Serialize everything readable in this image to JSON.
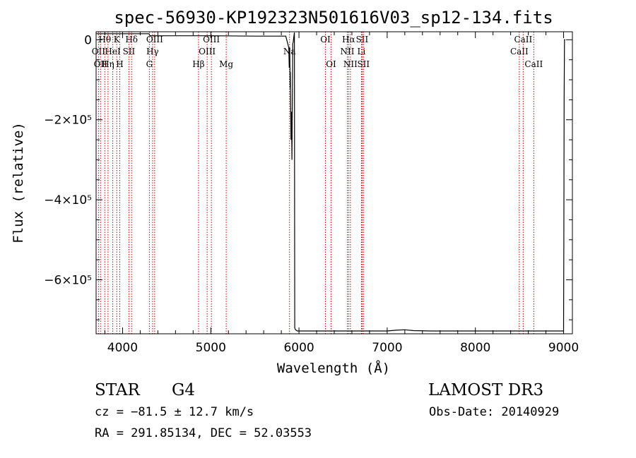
{
  "chart_data": {
    "type": "line",
    "title": "spec-56930-KP192323N501616V03_sp12-134.fits",
    "xlabel": "Wavelength (Å)",
    "ylabel": "Flux (relative)",
    "xlim": [
      3700,
      9100
    ],
    "ylim": [
      -735000,
      20000
    ],
    "x_ticks": [
      4000,
      5000,
      6000,
      7000,
      8000,
      9000
    ],
    "y_ticks": [
      {
        "value": 0,
        "label": "0"
      },
      {
        "value": -200000,
        "label": "−2×10⁵"
      },
      {
        "value": -400000,
        "label": "−4×10⁵"
      },
      {
        "value": -600000,
        "label": "−6×10⁵"
      }
    ],
    "series": [
      {
        "name": "flux",
        "x": [
          3705,
          3800,
          4000,
          4300,
          4310,
          4500,
          5000,
          5500,
          5850,
          5885,
          5890,
          5895,
          5900,
          5902,
          5905,
          5910,
          5915,
          5920,
          5925,
          5930,
          5935,
          5940,
          5948,
          5952,
          5960,
          5980,
          6000,
          6500,
          7000,
          7100,
          7200,
          7300,
          7500,
          8000,
          8500,
          9000,
          9003,
          9006,
          9010,
          9020
        ],
        "y": [
          15000,
          15000,
          15000,
          15000,
          10000,
          10000,
          10000,
          9000,
          9000,
          -20000,
          -70000,
          -20000,
          -120000,
          -80000,
          -150000,
          -250000,
          -180000,
          -300000,
          -150000,
          -10000,
          -5000,
          5000,
          18000,
          -720000,
          -725000,
          -728000,
          -728000,
          -728000,
          -728000,
          -726000,
          -725000,
          -727000,
          -728000,
          -728000,
          -728000,
          -728000,
          -500000,
          -150000,
          0,
          0
        ]
      }
    ],
    "spectral_lines": [
      {
        "wavelength": 3727,
        "label": "OII",
        "row": 1
      },
      {
        "wavelength": 3750,
        "label": "OII",
        "row": 2
      },
      {
        "wavelength": 3798,
        "label": "Hθ",
        "row": 0
      },
      {
        "wavelength": 3835,
        "label": "Hη",
        "row": 2
      },
      {
        "wavelength": 3889,
        "label": "HeI",
        "row": 1
      },
      {
        "wavelength": 3934,
        "label": "K",
        "row": 0
      },
      {
        "wavelength": 3968,
        "label": "H",
        "row": 2
      },
      {
        "wavelength": 4072,
        "label": "SII",
        "row": 1
      },
      {
        "wavelength": 4102,
        "label": "Hδ",
        "row": 0
      },
      {
        "wavelength": 4304,
        "label": "G",
        "row": 2
      },
      {
        "wavelength": 4340,
        "label": "Hγ",
        "row": 1
      },
      {
        "wavelength": 4364,
        "label": "OIII",
        "row": 0
      },
      {
        "wavelength": 4861,
        "label": "Hβ",
        "row": 2
      },
      {
        "wavelength": 4959,
        "label": "OIII",
        "row": 1
      },
      {
        "wavelength": 5007,
        "label": "OIII",
        "row": 0
      },
      {
        "wavelength": 5175,
        "label": "Mg",
        "row": 2
      },
      {
        "wavelength": 5893,
        "label": "Na",
        "row": 1
      },
      {
        "wavelength": 6300,
        "label": "OI",
        "row": 0
      },
      {
        "wavelength": 6364,
        "label": "OI",
        "row": 2
      },
      {
        "wavelength": 6548,
        "label": "NII",
        "row": 1
      },
      {
        "wavelength": 6563,
        "label": "Hα",
        "row": 0
      },
      {
        "wavelength": 6583,
        "label": "NII",
        "row": 2
      },
      {
        "wavelength": 6708,
        "label": "Li",
        "row": 1
      },
      {
        "wavelength": 6716,
        "label": "SII",
        "row": 0
      },
      {
        "wavelength": 6731,
        "label": "SII",
        "row": 2
      },
      {
        "wavelength": 8498,
        "label": "CaII",
        "row": 1
      },
      {
        "wavelength": 8542,
        "label": "CaII",
        "row": 0
      },
      {
        "wavelength": 8662,
        "label": "CaII",
        "row": 2
      }
    ]
  },
  "info": {
    "object_class": "STAR",
    "subclass": "G4",
    "survey": "LAMOST DR3",
    "redshift": "cz = −81.5 ± 12.7 km/s",
    "obs_date": "Obs-Date: 20140929",
    "coords": "RA = 291.85134, DEC =  52.03553"
  },
  "colors": {
    "line_marker": "#cc0000",
    "spectrum": "#000000",
    "background": "#ffffff"
  }
}
